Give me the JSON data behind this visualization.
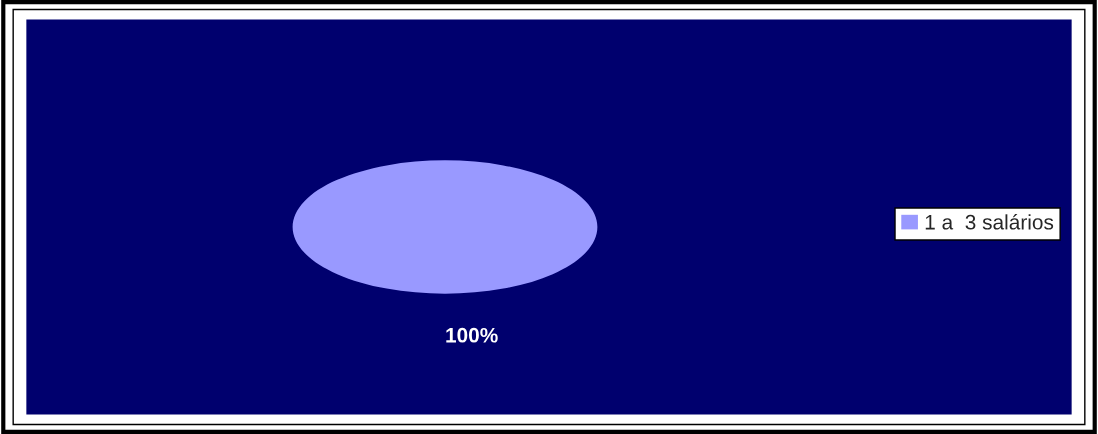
{
  "chart_data": {
    "type": "pie",
    "categories": [
      "1 a  3 salários"
    ],
    "values": [
      100
    ],
    "colors": [
      "#9999ff"
    ],
    "value_labels": [
      "100%"
    ],
    "legend": "right"
  }
}
